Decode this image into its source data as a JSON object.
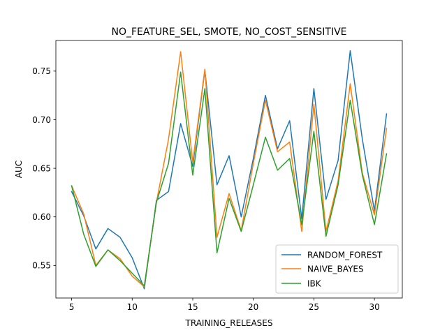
{
  "chart_data": {
    "type": "line",
    "title": "NO_FEATURE_SEL, SMOTE, NO_COST_SENSITIVE",
    "xlabel": "TRAINING_RELEASES",
    "ylabel": "AUC",
    "xlim": [
      3.7,
      32.3
    ],
    "ylim": [
      0.5165,
      0.7815
    ],
    "xticks": [
      5,
      10,
      15,
      20,
      25,
      30
    ],
    "yticks": [
      0.55,
      0.6,
      0.65,
      0.7,
      0.75
    ],
    "xtick_labels": [
      "5",
      "10",
      "15",
      "20",
      "25",
      "30"
    ],
    "ytick_labels": [
      "0.55",
      "0.60",
      "0.65",
      "0.70",
      "0.75"
    ],
    "grid": false,
    "legend_position": "lower-right",
    "x": [
      5,
      6,
      7,
      8,
      9,
      10,
      11,
      12,
      13,
      14,
      15,
      16,
      17,
      18,
      19,
      20,
      21,
      22,
      23,
      24,
      25,
      26,
      27,
      28,
      29,
      30,
      31
    ],
    "series": [
      {
        "name": "RANDOM_FOREST",
        "color": "#1f77b4",
        "values": [
          0.626,
          0.601,
          0.567,
          0.588,
          0.579,
          0.558,
          0.526,
          0.617,
          0.626,
          0.696,
          0.652,
          0.751,
          0.633,
          0.663,
          0.6,
          0.66,
          0.725,
          0.67,
          0.699,
          0.598,
          0.732,
          0.618,
          0.658,
          0.771,
          0.68,
          0.606,
          0.706
        ]
      },
      {
        "name": "NAIVE_BAYES",
        "color": "#ff7f0e",
        "values": [
          0.632,
          0.603,
          0.55,
          0.566,
          0.557,
          0.539,
          0.528,
          0.615,
          0.68,
          0.77,
          0.656,
          0.752,
          0.579,
          0.624,
          0.586,
          0.655,
          0.72,
          0.667,
          0.677,
          0.585,
          0.716,
          0.585,
          0.637,
          0.737,
          0.645,
          0.602,
          0.691
        ]
      },
      {
        "name": "IBK",
        "color": "#2ca02c",
        "values": [
          0.632,
          0.582,
          0.549,
          0.566,
          0.555,
          0.542,
          0.529,
          0.615,
          0.655,
          0.749,
          0.643,
          0.732,
          0.563,
          0.619,
          0.585,
          0.633,
          0.682,
          0.648,
          0.66,
          0.592,
          0.688,
          0.58,
          0.633,
          0.72,
          0.643,
          0.592,
          0.665
        ]
      }
    ]
  }
}
